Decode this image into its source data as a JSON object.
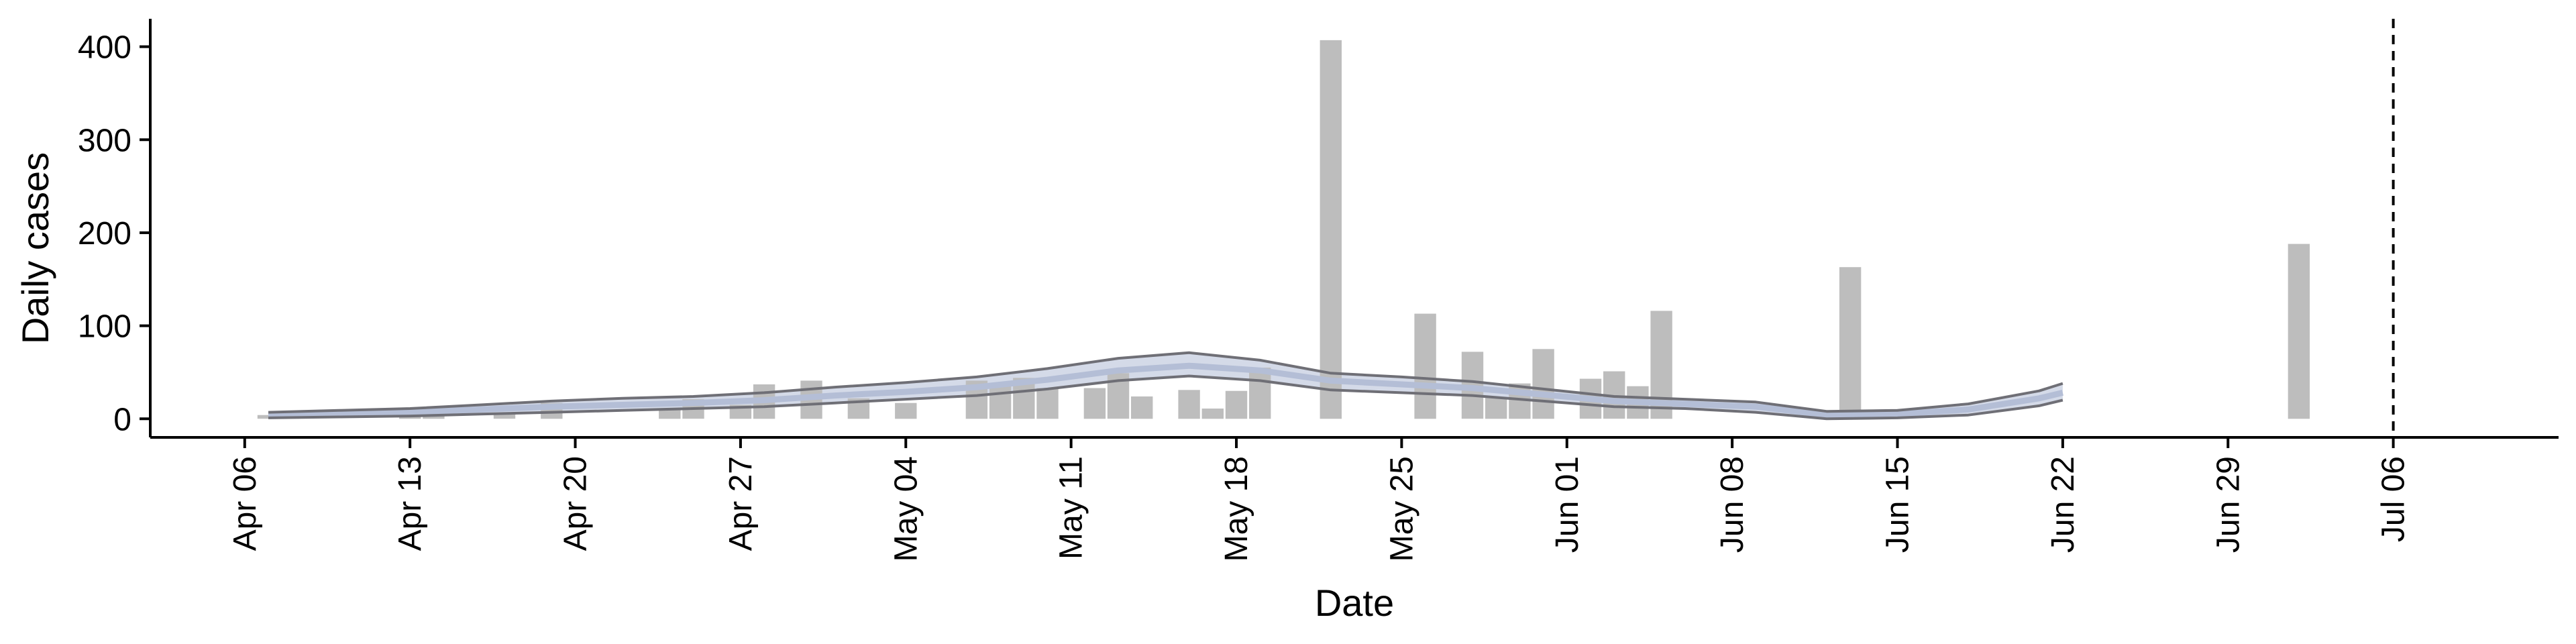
{
  "chart_data": {
    "type": "bar",
    "title": "",
    "xlabel": "Date",
    "ylabel": "Daily cases",
    "date_origin": "2020-04-06",
    "x_domain": [
      "2020-04-02",
      "2020-07-13"
    ],
    "ylim": [
      -20,
      430
    ],
    "y_ticks": [
      0,
      100,
      200,
      300,
      400
    ],
    "x_ticks": [
      {
        "date": "2020-04-06",
        "label": "Apr 06"
      },
      {
        "date": "2020-04-13",
        "label": "Apr 13"
      },
      {
        "date": "2020-04-20",
        "label": "Apr 20"
      },
      {
        "date": "2020-04-27",
        "label": "Apr 27"
      },
      {
        "date": "2020-05-04",
        "label": "May 04"
      },
      {
        "date": "2020-05-11",
        "label": "May 11"
      },
      {
        "date": "2020-05-18",
        "label": "May 18"
      },
      {
        "date": "2020-05-25",
        "label": "May 25"
      },
      {
        "date": "2020-06-01",
        "label": "Jun 01"
      },
      {
        "date": "2020-06-08",
        "label": "Jun 08"
      },
      {
        "date": "2020-06-15",
        "label": "Jun 15"
      },
      {
        "date": "2020-06-22",
        "label": "Jun 22"
      },
      {
        "date": "2020-06-29",
        "label": "Jun 29"
      },
      {
        "date": "2020-07-06",
        "label": "Jul 06"
      }
    ],
    "bars": [
      {
        "date": "2020-04-07",
        "value": 4
      },
      {
        "date": "2020-04-13",
        "value": 3
      },
      {
        "date": "2020-04-14",
        "value": 3
      },
      {
        "date": "2020-04-17",
        "value": 5
      },
      {
        "date": "2020-04-19",
        "value": 17
      },
      {
        "date": "2020-04-24",
        "value": 10
      },
      {
        "date": "2020-04-25",
        "value": 21
      },
      {
        "date": "2020-04-27",
        "value": 15
      },
      {
        "date": "2020-04-28",
        "value": 37
      },
      {
        "date": "2020-04-30",
        "value": 41
      },
      {
        "date": "2020-05-02",
        "value": 22
      },
      {
        "date": "2020-05-04",
        "value": 17
      },
      {
        "date": "2020-05-07",
        "value": 41
      },
      {
        "date": "2020-05-08",
        "value": 36
      },
      {
        "date": "2020-05-09",
        "value": 44
      },
      {
        "date": "2020-05-10",
        "value": 33
      },
      {
        "date": "2020-05-12",
        "value": 33
      },
      {
        "date": "2020-05-13",
        "value": 49
      },
      {
        "date": "2020-05-14",
        "value": 24
      },
      {
        "date": "2020-05-16",
        "value": 31
      },
      {
        "date": "2020-05-17",
        "value": 11
      },
      {
        "date": "2020-05-18",
        "value": 30
      },
      {
        "date": "2020-05-19",
        "value": 55
      },
      {
        "date": "2020-05-22",
        "value": 407
      },
      {
        "date": "2020-05-26",
        "value": 113
      },
      {
        "date": "2020-05-28",
        "value": 72
      },
      {
        "date": "2020-05-29",
        "value": 23
      },
      {
        "date": "2020-05-30",
        "value": 38
      },
      {
        "date": "2020-05-31",
        "value": 75
      },
      {
        "date": "2020-06-02",
        "value": 43
      },
      {
        "date": "2020-06-03",
        "value": 51
      },
      {
        "date": "2020-06-04",
        "value": 35
      },
      {
        "date": "2020-06-05",
        "value": 116
      },
      {
        "date": "2020-06-13",
        "value": 163
      },
      {
        "date": "2020-07-02",
        "value": 188
      }
    ],
    "median": [
      {
        "date": "2020-04-07",
        "value": 3
      },
      {
        "date": "2020-04-10",
        "value": 5
      },
      {
        "date": "2020-04-13",
        "value": 7
      },
      {
        "date": "2020-04-16",
        "value": 10
      },
      {
        "date": "2020-04-19",
        "value": 13
      },
      {
        "date": "2020-04-22",
        "value": 15
      },
      {
        "date": "2020-04-25",
        "value": 17
      },
      {
        "date": "2020-04-28",
        "value": 20
      },
      {
        "date": "2020-05-01",
        "value": 25
      },
      {
        "date": "2020-05-04",
        "value": 29
      },
      {
        "date": "2020-05-07",
        "value": 34
      },
      {
        "date": "2020-05-10",
        "value": 42
      },
      {
        "date": "2020-05-13",
        "value": 52
      },
      {
        "date": "2020-05-16",
        "value": 57
      },
      {
        "date": "2020-05-19",
        "value": 52
      },
      {
        "date": "2020-05-22",
        "value": 41
      },
      {
        "date": "2020-05-25",
        "value": 37
      },
      {
        "date": "2020-05-28",
        "value": 33
      },
      {
        "date": "2020-05-31",
        "value": 26
      },
      {
        "date": "2020-06-03",
        "value": 19
      },
      {
        "date": "2020-06-06",
        "value": 16
      },
      {
        "date": "2020-06-09",
        "value": 13
      },
      {
        "date": "2020-06-12",
        "value": 4
      },
      {
        "date": "2020-06-15",
        "value": 5
      },
      {
        "date": "2020-06-18",
        "value": 10
      },
      {
        "date": "2020-06-21",
        "value": 22
      },
      {
        "date": "2020-06-22",
        "value": 28
      }
    ],
    "ci_upper": [
      {
        "date": "2020-04-07",
        "value": 7
      },
      {
        "date": "2020-04-10",
        "value": 9
      },
      {
        "date": "2020-04-13",
        "value": 11
      },
      {
        "date": "2020-04-16",
        "value": 15
      },
      {
        "date": "2020-04-19",
        "value": 19
      },
      {
        "date": "2020-04-22",
        "value": 22
      },
      {
        "date": "2020-04-25",
        "value": 24
      },
      {
        "date": "2020-04-28",
        "value": 28
      },
      {
        "date": "2020-05-01",
        "value": 34
      },
      {
        "date": "2020-05-04",
        "value": 39
      },
      {
        "date": "2020-05-07",
        "value": 45
      },
      {
        "date": "2020-05-10",
        "value": 54
      },
      {
        "date": "2020-05-13",
        "value": 65
      },
      {
        "date": "2020-05-16",
        "value": 71
      },
      {
        "date": "2020-05-19",
        "value": 63
      },
      {
        "date": "2020-05-22",
        "value": 49
      },
      {
        "date": "2020-05-25",
        "value": 45
      },
      {
        "date": "2020-05-28",
        "value": 40
      },
      {
        "date": "2020-05-31",
        "value": 32
      },
      {
        "date": "2020-06-03",
        "value": 24
      },
      {
        "date": "2020-06-06",
        "value": 21
      },
      {
        "date": "2020-06-09",
        "value": 18
      },
      {
        "date": "2020-06-12",
        "value": 8
      },
      {
        "date": "2020-06-15",
        "value": 9
      },
      {
        "date": "2020-06-18",
        "value": 16
      },
      {
        "date": "2020-06-21",
        "value": 30
      },
      {
        "date": "2020-06-22",
        "value": 38
      }
    ],
    "ci_lower": [
      {
        "date": "2020-04-07",
        "value": 1
      },
      {
        "date": "2020-04-10",
        "value": 2
      },
      {
        "date": "2020-04-13",
        "value": 3
      },
      {
        "date": "2020-04-16",
        "value": 5
      },
      {
        "date": "2020-04-19",
        "value": 7
      },
      {
        "date": "2020-04-22",
        "value": 9
      },
      {
        "date": "2020-04-25",
        "value": 11
      },
      {
        "date": "2020-04-28",
        "value": 13
      },
      {
        "date": "2020-05-01",
        "value": 17
      },
      {
        "date": "2020-05-04",
        "value": 21
      },
      {
        "date": "2020-05-07",
        "value": 25
      },
      {
        "date": "2020-05-10",
        "value": 32
      },
      {
        "date": "2020-05-13",
        "value": 41
      },
      {
        "date": "2020-05-16",
        "value": 46
      },
      {
        "date": "2020-05-19",
        "value": 41
      },
      {
        "date": "2020-05-22",
        "value": 31
      },
      {
        "date": "2020-05-25",
        "value": 28
      },
      {
        "date": "2020-05-28",
        "value": 25
      },
      {
        "date": "2020-05-31",
        "value": 19
      },
      {
        "date": "2020-06-03",
        "value": 13
      },
      {
        "date": "2020-06-06",
        "value": 11
      },
      {
        "date": "2020-06-09",
        "value": 7
      },
      {
        "date": "2020-06-12",
        "value": 0
      },
      {
        "date": "2020-06-15",
        "value": 1
      },
      {
        "date": "2020-06-18",
        "value": 4
      },
      {
        "date": "2020-06-21",
        "value": 14
      },
      {
        "date": "2020-06-22",
        "value": 20
      }
    ],
    "vline_date": "2020-07-06",
    "grid": false,
    "colors": {
      "bar": "#bdbdbd",
      "band": "#c6cde0",
      "median_line": "#b4bed6",
      "ci_line": "#6f6f76",
      "axis": "#000000"
    }
  }
}
